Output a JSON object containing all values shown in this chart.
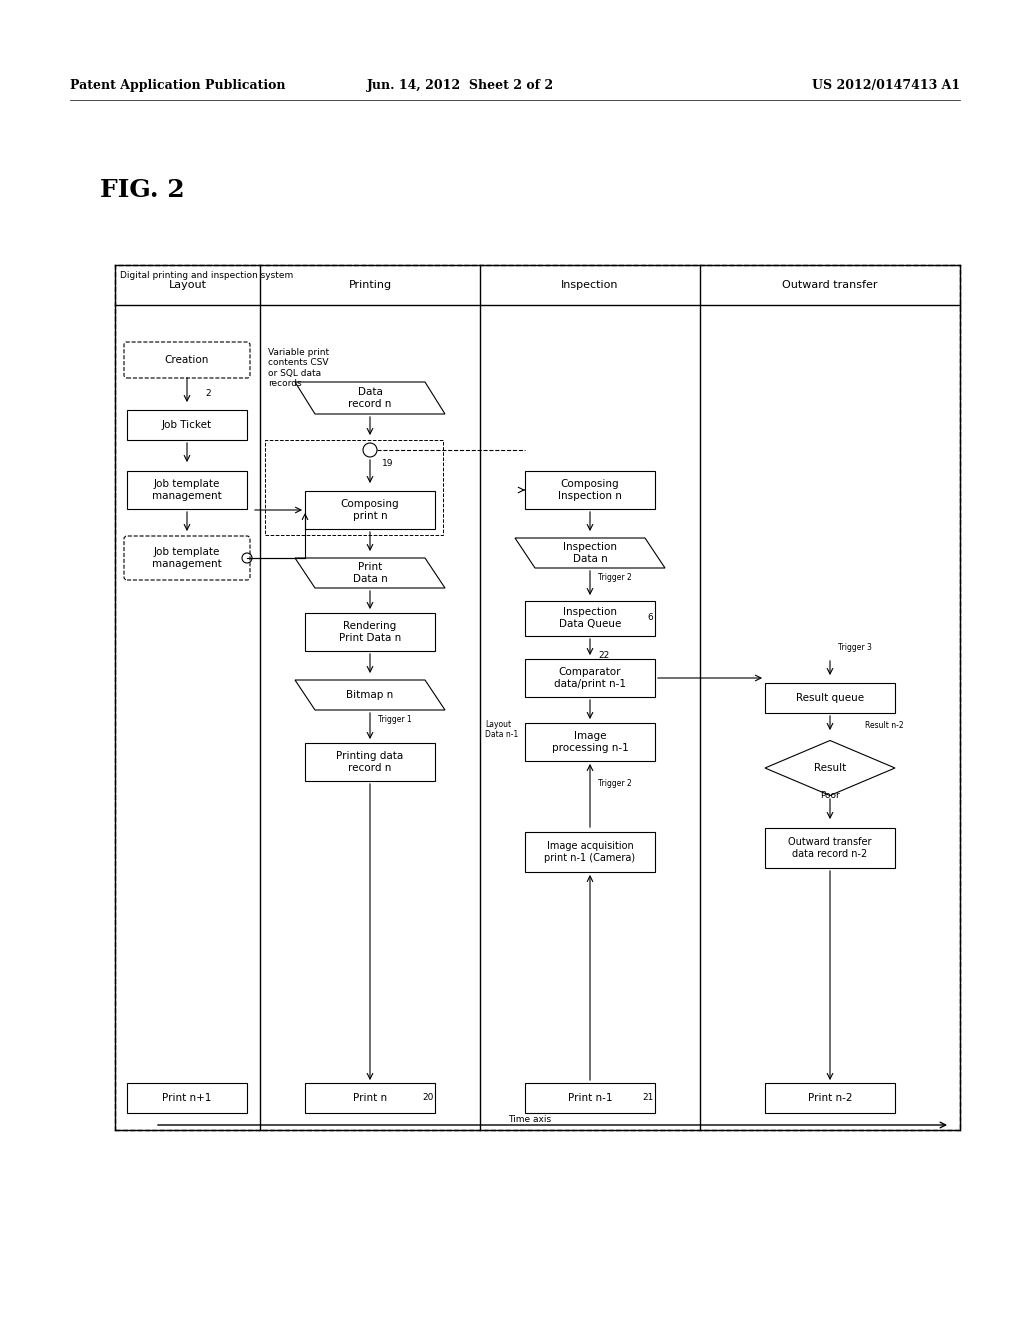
{
  "header_left": "Patent Application Publication",
  "header_mid": "Jun. 14, 2012  Sheet 2 of 2",
  "header_right": "US 2012/0147413 A1",
  "fig_label": "FIG. 2",
  "outer_box_label": "Digital printing and inspection system",
  "columns": [
    "Layout",
    "Printing",
    "Inspection",
    "Outward transfer"
  ],
  "bg_color": "#ffffff",
  "box_color": "#ffffff",
  "border_color": "#000000",
  "text_color": "#000000",
  "font_size": 7.5,
  "small_font_size": 6.5
}
